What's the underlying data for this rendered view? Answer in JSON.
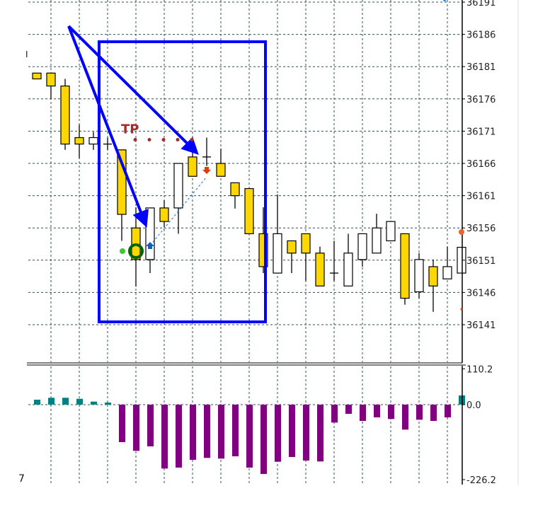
{
  "chart_data": [
    {
      "type": "candlestick",
      "title": "",
      "price_axis": {
        "ticks": [
          "36191",
          "36186",
          "36181",
          "36176",
          "36171",
          "36166",
          "36161",
          "36156",
          "36151",
          "36146",
          "36141"
        ],
        "ylim": [
          36141,
          36191
        ]
      },
      "grid": true,
      "colors": {
        "bear_body": "#FFD700",
        "bull_body": "#FFFFFF",
        "outline": "#000000",
        "grid": "#2F4F4F"
      },
      "candles": [
        {
          "o": 36180.0,
          "h": 36180.0,
          "l": 36179.1,
          "c": 36179.1
        },
        {
          "o": 36180.0,
          "h": 36180.0,
          "l": 36176.0,
          "c": 36178.0
        },
        {
          "o": 36178.0,
          "h": 36179.1,
          "l": 36168.1,
          "c": 36169.0
        },
        {
          "o": 36170.0,
          "h": 36172.0,
          "l": 36166.8,
          "c": 36169.0
        },
        {
          "o": 36169.0,
          "h": 36170.9,
          "l": 36168.1,
          "c": 36170.0
        },
        {
          "o": 36169.0,
          "h": 36170.0,
          "l": 36168.1,
          "c": 36169.0
        },
        {
          "o": 36168.1,
          "h": 36168.1,
          "l": 36154.0,
          "c": 36158.1
        },
        {
          "o": 36156.0,
          "h": 36159.2,
          "l": 36146.9,
          "c": 36151.1
        },
        {
          "o": 36151.1,
          "h": 36159.1,
          "l": 36149.0,
          "c": 36159.1
        },
        {
          "o": 36159.1,
          "h": 36160.3,
          "l": 36156.1,
          "c": 36157.0
        },
        {
          "o": 36159.1,
          "h": 36166.0,
          "l": 36155.1,
          "c": 36166.0
        },
        {
          "o": 36167.0,
          "h": 36168.1,
          "l": 36164.0,
          "c": 36164.0
        },
        {
          "o": 36167.0,
          "h": 36170.0,
          "l": 36165.6,
          "c": 36167.0
        },
        {
          "o": 36166.0,
          "h": 36168.3,
          "l": 36164.0,
          "c": 36164.0
        },
        {
          "o": 36163.0,
          "h": 36163.0,
          "l": 36159.0,
          "c": 36161.0
        },
        {
          "o": 36162.1,
          "h": 36162.1,
          "l": 36155.1,
          "c": 36155.1
        },
        {
          "o": 36155.1,
          "h": 36159.2,
          "l": 36149.0,
          "c": 36150.0
        },
        {
          "o": 36149.0,
          "h": 36161.2,
          "l": 36149.0,
          "c": 36155.1
        },
        {
          "o": 36154.0,
          "h": 36154.0,
          "l": 36149.0,
          "c": 36152.1
        },
        {
          "o": 36155.1,
          "h": 36155.1,
          "l": 36147.8,
          "c": 36152.1
        },
        {
          "o": 36152.1,
          "h": 36153.1,
          "l": 36147.0,
          "c": 36147.0
        },
        {
          "o": 36149.0,
          "h": 36154.0,
          "l": 36147.8,
          "c": 36149.0
        },
        {
          "o": 36147.0,
          "h": 36155.1,
          "l": 36147.0,
          "c": 36152.1
        },
        {
          "o": 36151.1,
          "h": 36155.1,
          "l": 36150.0,
          "c": 36155.1
        },
        {
          "o": 36152.1,
          "h": 36158.2,
          "l": 36152.1,
          "c": 36156.0
        },
        {
          "o": 36154.0,
          "h": 36157.0,
          "l": 36154.0,
          "c": 36157.0
        },
        {
          "o": 36155.1,
          "h": 36155.1,
          "l": 36144.1,
          "c": 36145.1
        },
        {
          "o": 36146.1,
          "h": 36152.1,
          "l": 36145.1,
          "c": 36151.1
        },
        {
          "o": 36150.0,
          "h": 36151.1,
          "l": 36143.0,
          "c": 36147.0
        },
        {
          "o": 36148.1,
          "h": 36153.1,
          "l": 36148.1,
          "c": 36150.0
        },
        {
          "o": 36149.0,
          "h": 36153.0,
          "l": 36149.0,
          "c": 36153.0
        }
      ],
      "annotations": {
        "tp_label": "TP",
        "tp_level": 36170.0,
        "buy_arrow_price": 36152.5,
        "sell_arrow_price": 36166.0,
        "rectangle_color": "#0000FF",
        "arrow_color": "#0000FF",
        "tp_color": "#A52A2A"
      }
    },
    {
      "type": "bar",
      "title": "",
      "ylim": [
        -226.2,
        110.2
      ],
      "axis_labels": [
        "110.2",
        "0.0",
        "-226.2"
      ],
      "colors": {
        "positive": "#008080",
        "negative": "#800080"
      },
      "values": [
        14.9,
        20.7,
        20.7,
        17.7,
        9.2,
        6.4,
        -113.1,
        -139.4,
        -125.9,
        -192.7,
        -189.9,
        -166.5,
        -160.7,
        -162.8,
        -155.8,
        -189.9,
        -209.1,
        -172.2,
        -157.9,
        -168.6,
        -171.4,
        -54.0,
        -27.7,
        -49.1,
        -38.4,
        -43.3,
        -75.3,
        -45.5,
        -49.1,
        -38.4,
        27.7
      ]
    }
  ],
  "corner_label": "7",
  "left_marker": "I"
}
